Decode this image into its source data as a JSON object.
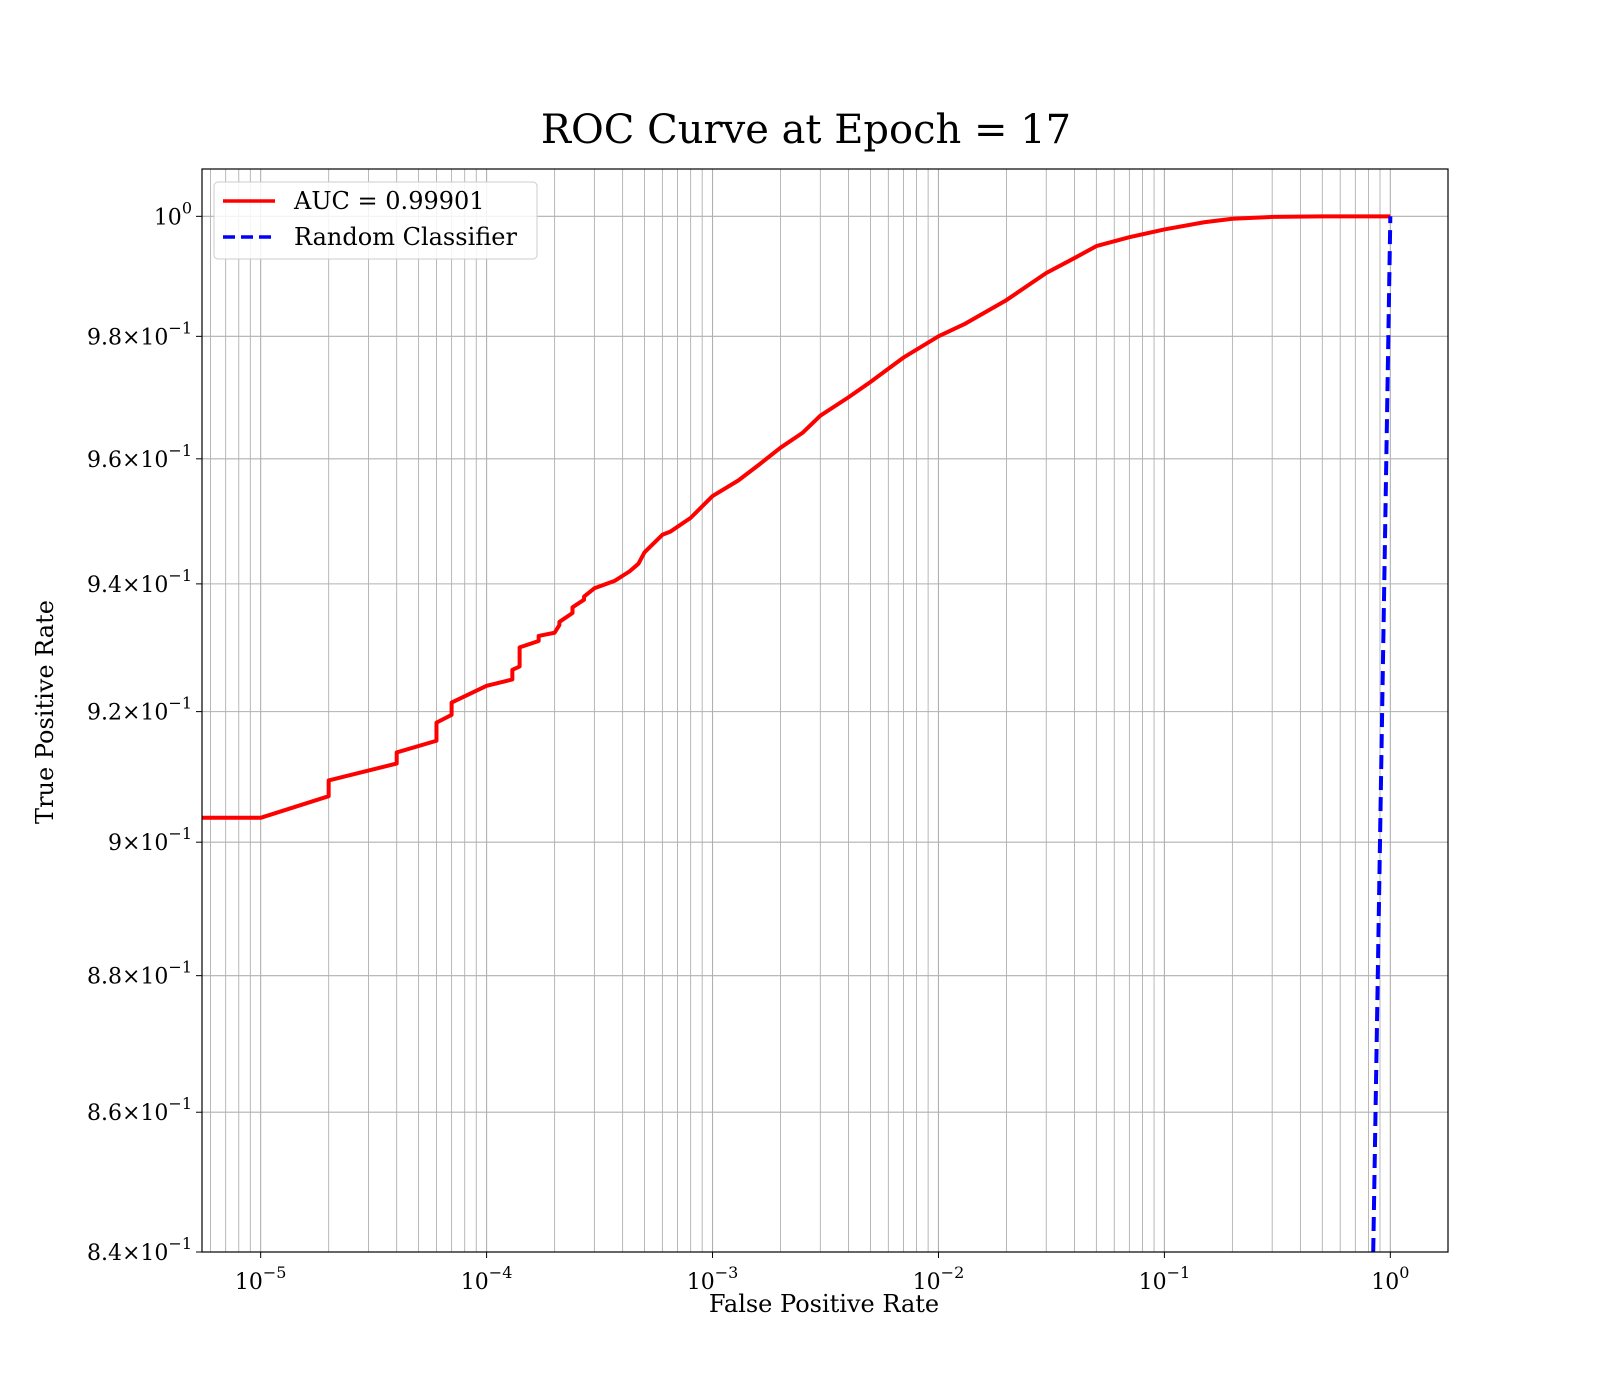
{
  "chart_data": {
    "type": "line",
    "title": "ROC Curve at Epoch = 17",
    "xlabel": "False Positive Rate",
    "ylabel": "True Positive Rate",
    "xscale": "log",
    "yscale": "log",
    "xlim": [
      5.5e-06,
      1.8
    ],
    "ylim": [
      0.84,
      1.008
    ],
    "grid": "both (major and minor)",
    "legend_placement": "top-left",
    "x_ticks": [
      {
        "value": 1e-05,
        "base": "10",
        "exp": "−5"
      },
      {
        "value": 0.0001,
        "base": "10",
        "exp": "−4"
      },
      {
        "value": 0.001,
        "base": "10",
        "exp": "−3"
      },
      {
        "value": 0.01,
        "base": "10",
        "exp": "−2"
      },
      {
        "value": 0.1,
        "base": "10",
        "exp": "−1"
      },
      {
        "value": 1,
        "base": "10",
        "exp": "0"
      }
    ],
    "y_ticks": [
      {
        "value": 0.84,
        "mant": "8.4",
        "exp": "−1"
      },
      {
        "value": 0.86,
        "mant": "8.6",
        "exp": "−1"
      },
      {
        "value": 0.88,
        "mant": "8.8",
        "exp": "−1"
      },
      {
        "value": 0.9,
        "mant": "9",
        "exp": "−1"
      },
      {
        "value": 0.92,
        "mant": "9.2",
        "exp": "−1"
      },
      {
        "value": 0.94,
        "mant": "9.4",
        "exp": "−1"
      },
      {
        "value": 0.96,
        "mant": "9.6",
        "exp": "−1"
      },
      {
        "value": 0.98,
        "mant": "9.8",
        "exp": "−1"
      },
      {
        "value": 1.0,
        "mant": "",
        "exp": "0"
      }
    ],
    "series": [
      {
        "name": "AUC = 0.99901",
        "color": "#ff0000",
        "style": "solid",
        "x": [
          5.5e-06,
          1e-05,
          2e-05,
          2e-05,
          4e-05,
          4e-05,
          6e-05,
          6e-05,
          7e-05,
          7e-05,
          0.0001,
          0.00013,
          0.00013,
          0.00014,
          0.00014,
          0.00017,
          0.00017,
          0.0002,
          0.00021,
          0.00021,
          0.00024,
          0.00024,
          0.00027,
          0.00027,
          0.0003,
          0.00037,
          0.00043,
          0.00047,
          0.0005,
          0.0006,
          0.00065,
          0.0008,
          0.001,
          0.0013,
          0.0016,
          0.002,
          0.0025,
          0.003,
          0.004,
          0.005,
          0.007,
          0.01,
          0.013,
          0.02,
          0.03,
          0.04,
          0.05,
          0.07,
          0.1,
          0.15,
          0.2,
          0.3,
          0.5,
          0.7,
          1.0
        ],
        "y": [
          0.9037,
          0.9037,
          0.907,
          0.9094,
          0.912,
          0.9137,
          0.9155,
          0.9183,
          0.9195,
          0.9214,
          0.924,
          0.925,
          0.9265,
          0.927,
          0.93,
          0.931,
          0.9318,
          0.9323,
          0.9335,
          0.934,
          0.9354,
          0.9363,
          0.9375,
          0.938,
          0.9393,
          0.9405,
          0.942,
          0.9432,
          0.945,
          0.9478,
          0.9483,
          0.9505,
          0.954,
          0.9565,
          0.959,
          0.9618,
          0.9642,
          0.967,
          0.97,
          0.9725,
          0.9765,
          0.98,
          0.982,
          0.986,
          0.9905,
          0.993,
          0.995,
          0.9965,
          0.9978,
          0.999,
          0.9996,
          0.9999,
          1.0,
          1.0,
          1.0
        ]
      },
      {
        "name": "Random Classifier",
        "color": "#0000ff",
        "style": "dashed",
        "x": [
          0.84,
          0.92,
          1.0
        ],
        "y": [
          0.84,
          0.92,
          1.0
        ]
      }
    ]
  }
}
